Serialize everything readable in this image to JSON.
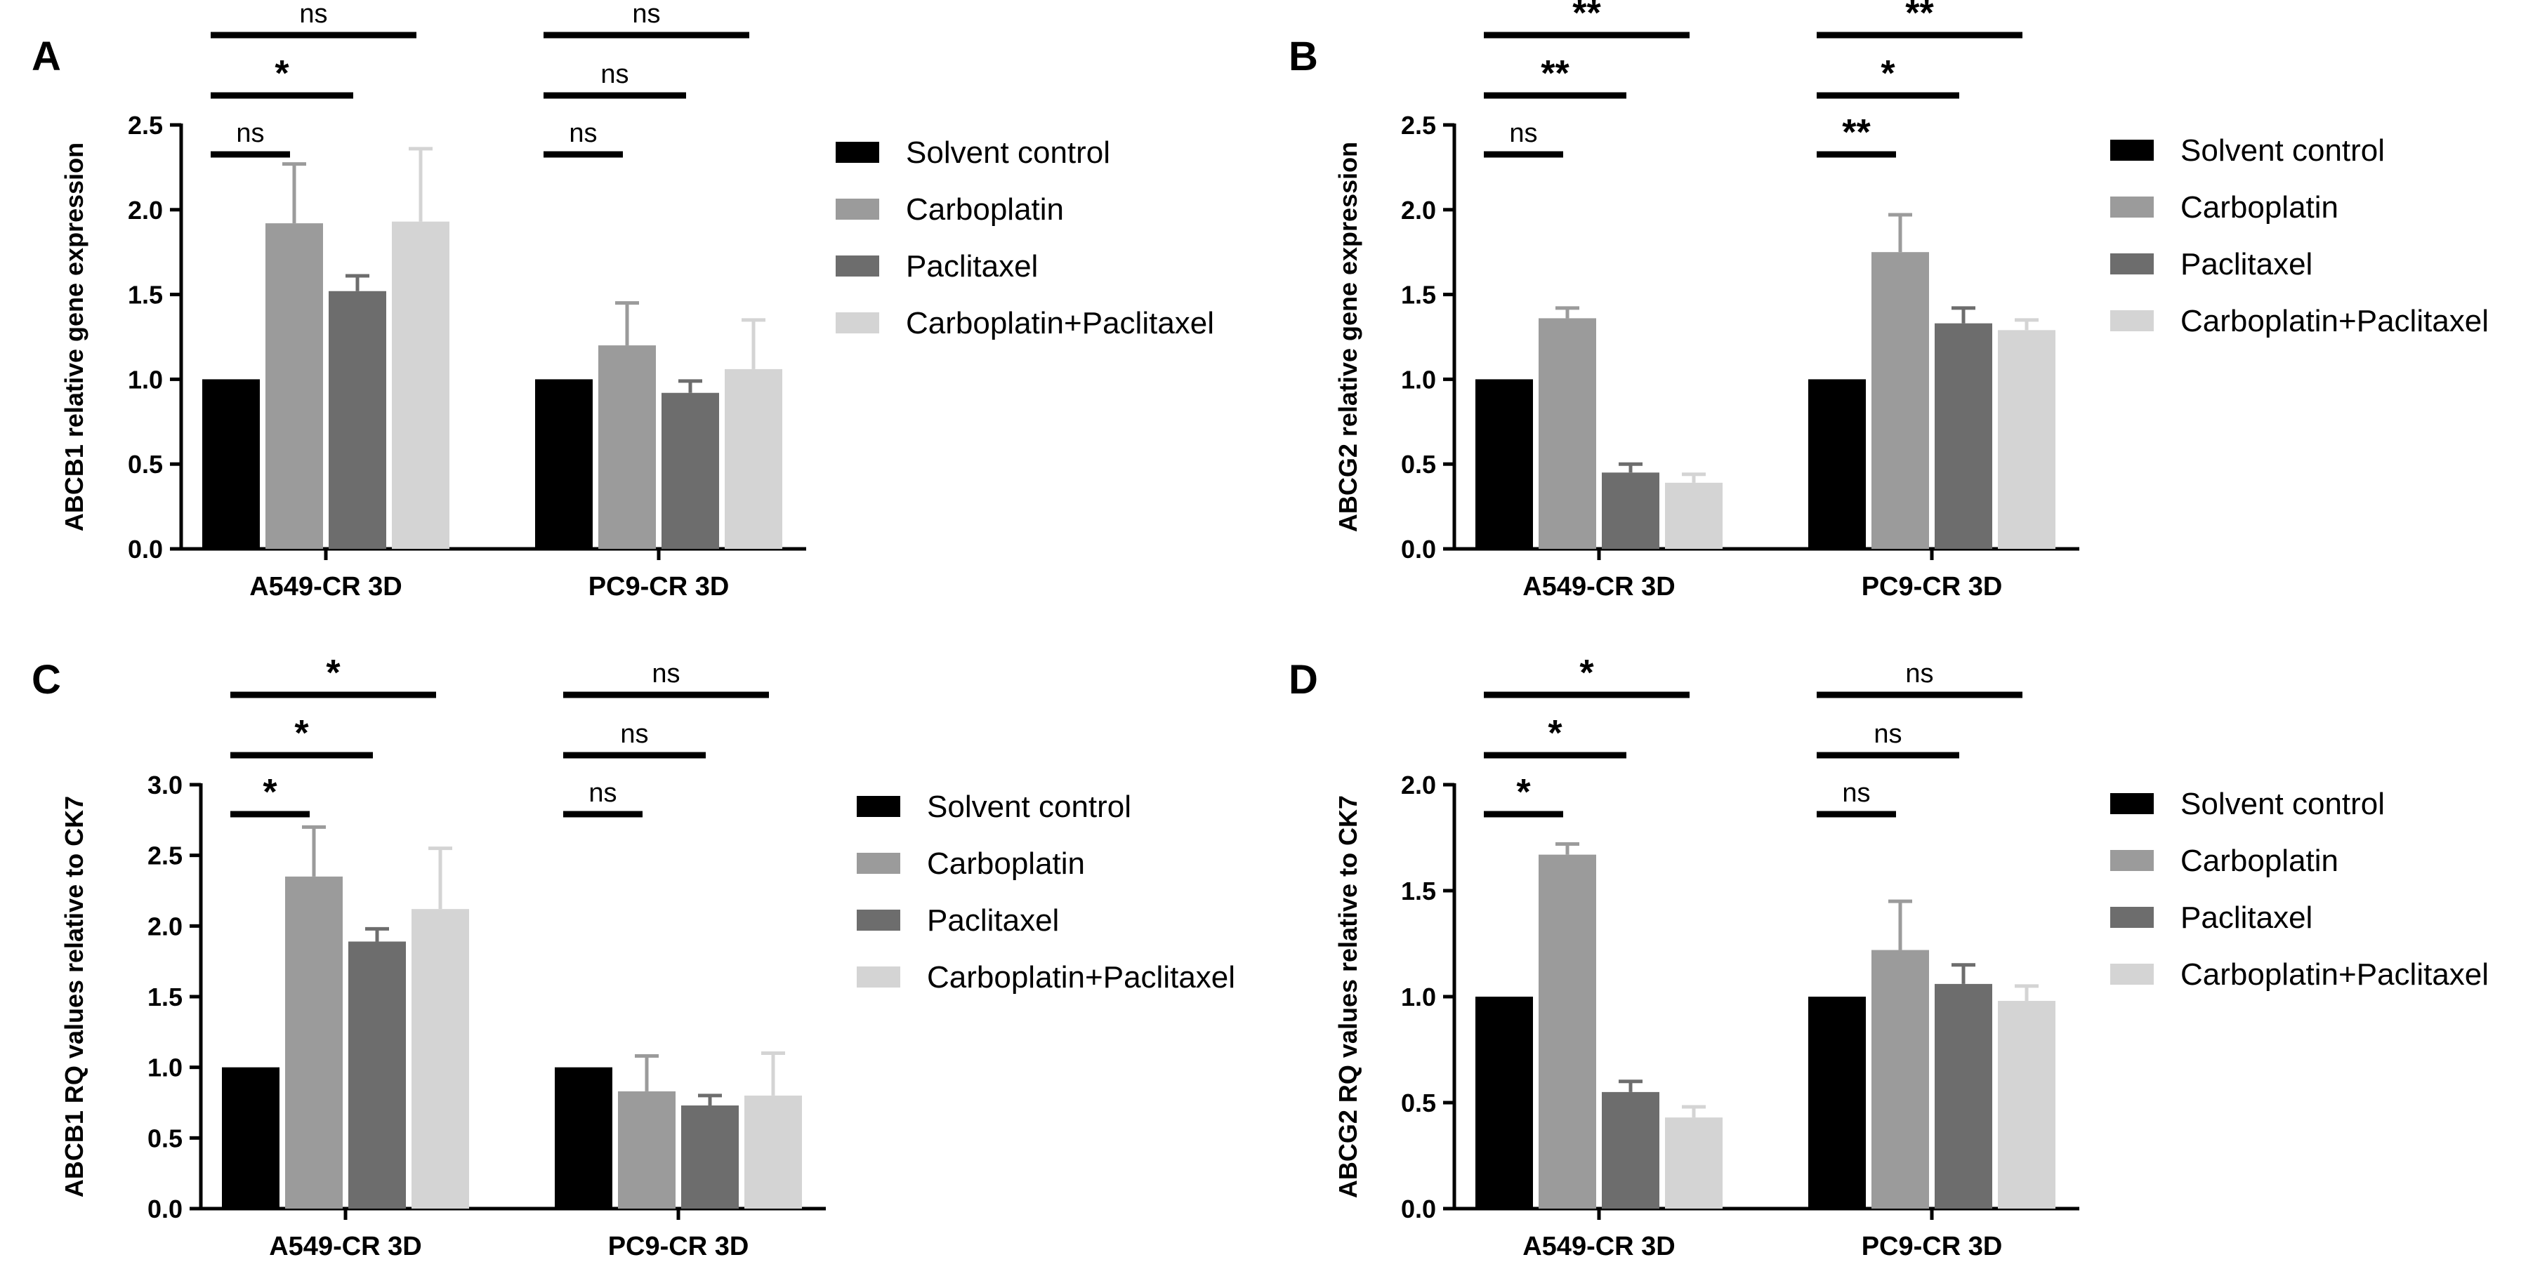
{
  "colors": {
    "Solvent control": "#000000",
    "Carboplatin": "#9b9b9b",
    "Paclitaxel": "#6d6d6d",
    "Carboplatin+Paclitaxel": "#d4d4d4"
  },
  "chart_data": [
    {
      "type": "bar",
      "panel": "A",
      "ylabel": "ABCB1 relative gene expression",
      "ylim": [
        0,
        2.5
      ],
      "yticks": [
        "0.0",
        "0.5",
        "1.0",
        "1.5",
        "2.0",
        "2.5"
      ],
      "categories": [
        "A549-CR 3D",
        "PC9-CR 3D"
      ],
      "legend": "right",
      "series": [
        {
          "name": "Solvent control",
          "values": [
            1.0,
            1.0
          ],
          "errors": [
            0,
            0
          ]
        },
        {
          "name": "Carboplatin",
          "values": [
            1.92,
            1.2
          ],
          "errors": [
            0.35,
            0.25
          ]
        },
        {
          "name": "Paclitaxel",
          "values": [
            1.52,
            0.92
          ],
          "errors": [
            0.09,
            0.07
          ]
        },
        {
          "name": "Carboplatin+Paclitaxel",
          "values": [
            1.93,
            1.06
          ],
          "errors": [
            0.43,
            0.29
          ]
        }
      ],
      "significance": [
        {
          "category": 0,
          "to": 1,
          "label": "ns"
        },
        {
          "category": 0,
          "to": 2,
          "label": "*"
        },
        {
          "category": 0,
          "to": 3,
          "label": "ns"
        },
        {
          "category": 1,
          "to": 1,
          "label": "ns"
        },
        {
          "category": 1,
          "to": 2,
          "label": "ns"
        },
        {
          "category": 1,
          "to": 3,
          "label": "ns"
        }
      ]
    },
    {
      "type": "bar",
      "panel": "B",
      "ylabel": "ABCG2 relative gene expression",
      "ylim": [
        0,
        2.5
      ],
      "yticks": [
        "0.0",
        "0.5",
        "1.0",
        "1.5",
        "2.0",
        "2.5"
      ],
      "categories": [
        "A549-CR 3D",
        "PC9-CR 3D"
      ],
      "legend": "right",
      "series": [
        {
          "name": "Solvent control",
          "values": [
            1.0,
            1.0
          ],
          "errors": [
            0,
            0
          ]
        },
        {
          "name": "Carboplatin",
          "values": [
            1.36,
            1.75
          ],
          "errors": [
            0.06,
            0.22
          ]
        },
        {
          "name": "Paclitaxel",
          "values": [
            0.45,
            1.33
          ],
          "errors": [
            0.05,
            0.09
          ]
        },
        {
          "name": "Carboplatin+Paclitaxel",
          "values": [
            0.39,
            1.29
          ],
          "errors": [
            0.05,
            0.06
          ]
        }
      ],
      "significance": [
        {
          "category": 0,
          "to": 1,
          "label": "ns"
        },
        {
          "category": 0,
          "to": 2,
          "label": "**"
        },
        {
          "category": 0,
          "to": 3,
          "label": "**"
        },
        {
          "category": 1,
          "to": 1,
          "label": "**"
        },
        {
          "category": 1,
          "to": 2,
          "label": "*"
        },
        {
          "category": 1,
          "to": 3,
          "label": "**"
        }
      ]
    },
    {
      "type": "bar",
      "panel": "C",
      "ylabel": "ABCB1 RQ values relative to CK7",
      "ylim": [
        0,
        3.0
      ],
      "yticks": [
        "0.0",
        "0.5",
        "1.0",
        "1.5",
        "2.0",
        "2.5",
        "3.0"
      ],
      "categories": [
        "A549-CR 3D",
        "PC9-CR 3D"
      ],
      "legend": "right",
      "series": [
        {
          "name": "Solvent control",
          "values": [
            1.0,
            1.0
          ],
          "errors": [
            0,
            0
          ]
        },
        {
          "name": "Carboplatin",
          "values": [
            2.35,
            0.83
          ],
          "errors": [
            0.35,
            0.25
          ]
        },
        {
          "name": "Paclitaxel",
          "values": [
            1.89,
            0.73
          ],
          "errors": [
            0.09,
            0.07
          ]
        },
        {
          "name": "Carboplatin+Paclitaxel",
          "values": [
            2.12,
            0.8
          ],
          "errors": [
            0.43,
            0.3
          ]
        }
      ],
      "significance": [
        {
          "category": 0,
          "to": 1,
          "label": "*"
        },
        {
          "category": 0,
          "to": 2,
          "label": "*"
        },
        {
          "category": 0,
          "to": 3,
          "label": "*"
        },
        {
          "category": 1,
          "to": 1,
          "label": "ns"
        },
        {
          "category": 1,
          "to": 2,
          "label": "ns"
        },
        {
          "category": 1,
          "to": 3,
          "label": "ns"
        }
      ]
    },
    {
      "type": "bar",
      "panel": "D",
      "ylabel": "ABCG2 RQ values relative to CK7",
      "ylim": [
        0,
        2.0
      ],
      "yticks": [
        "0.0",
        "0.5",
        "1.0",
        "1.5",
        "2.0"
      ],
      "categories": [
        "A549-CR 3D",
        "PC9-CR 3D"
      ],
      "legend": "right",
      "series": [
        {
          "name": "Solvent control",
          "values": [
            1.0,
            1.0
          ],
          "errors": [
            0,
            0
          ]
        },
        {
          "name": "Carboplatin",
          "values": [
            1.67,
            1.22
          ],
          "errors": [
            0.05,
            0.23
          ]
        },
        {
          "name": "Paclitaxel",
          "values": [
            0.55,
            1.06
          ],
          "errors": [
            0.05,
            0.09
          ]
        },
        {
          "name": "Carboplatin+Paclitaxel",
          "values": [
            0.43,
            0.98
          ],
          "errors": [
            0.05,
            0.07
          ]
        }
      ],
      "significance": [
        {
          "category": 0,
          "to": 1,
          "label": "*"
        },
        {
          "category": 0,
          "to": 2,
          "label": "*"
        },
        {
          "category": 0,
          "to": 3,
          "label": "*"
        },
        {
          "category": 1,
          "to": 1,
          "label": "ns"
        },
        {
          "category": 1,
          "to": 2,
          "label": "ns"
        },
        {
          "category": 1,
          "to": 3,
          "label": "ns"
        }
      ]
    }
  ]
}
